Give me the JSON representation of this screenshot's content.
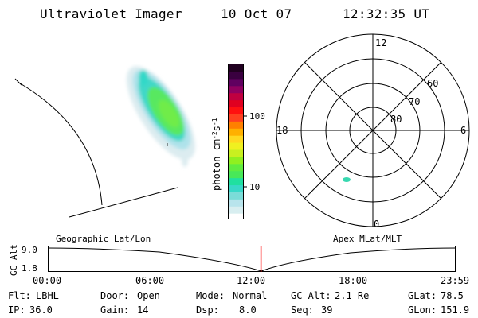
{
  "header": {
    "title": "Ultraviolet Imager",
    "date": "10 Oct 07",
    "time": "12:32:35 UT"
  },
  "colorbar": {
    "label": "photon cm",
    "label_sup1": "-2",
    "label_mid": "s",
    "label_sup2": "-1",
    "ticks": [
      {
        "label": "100",
        "value": 100
      },
      {
        "label": "10",
        "value": 10
      }
    ],
    "colors": [
      "#ffffff",
      "#d8eef0",
      "#b8e4ec",
      "#7adcd8",
      "#38d8c8",
      "#20e0a0",
      "#48e858",
      "#60ec40",
      "#90f020",
      "#c8f020",
      "#f0f020",
      "#ffd820",
      "#ffb000",
      "#ff8000",
      "#ff4020",
      "#ff1010",
      "#e00020",
      "#c00040",
      "#900060",
      "#600060",
      "#3a0040",
      "#200020"
    ]
  },
  "polar": {
    "hour_labels": [
      "12",
      "18",
      "6",
      "0"
    ],
    "lat_labels": [
      "60",
      "70",
      "80"
    ]
  },
  "timeline": {
    "ylabel": "GC Alt",
    "ytick_top": "9.0",
    "ytick_bottom": "1.8",
    "left_caption": "Geographic Lat/Lon",
    "right_caption": "Apex MLat/MLT",
    "xticks": [
      "00:00",
      "06:00",
      "12:00",
      "18:00",
      "23:59"
    ],
    "current_time_fraction": 0.5226,
    "marker_color": "#ff0000"
  },
  "status": {
    "filter_label": "Flt:",
    "filter_value": "LBHL",
    "ip_label": "IP:",
    "ip_value": "36.0",
    "door_label": "Door:",
    "door_value": "Open",
    "gain_label": "Gain:",
    "gain_value": "14",
    "mode_label": "Mode:",
    "mode_value": "Normal",
    "dsp_label": "Dsp:",
    "dsp_value": "8.0",
    "gcalt_label": "GC Alt:",
    "gcalt_value": "2.1 Re",
    "seq_label": "Seq:",
    "seq_value": "39",
    "glat_label": "GLat:",
    "glat_value": "78.5",
    "glon_label": "GLon:",
    "glon_value": "151.9"
  }
}
